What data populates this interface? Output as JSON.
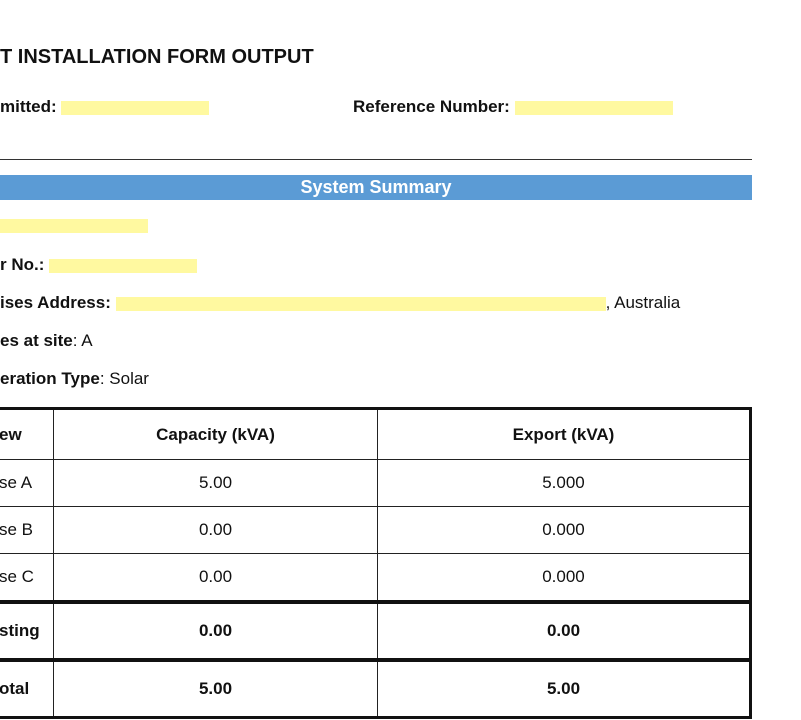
{
  "header": {
    "title": "T INSTALLATION FORM OUTPUT",
    "submitted_label": "mitted:",
    "reference_label": "Reference Number:"
  },
  "section": {
    "title": "System Summary"
  },
  "fields": [
    {
      "label": "",
      "value": ""
    },
    {
      "label": "r No.:",
      "value": ""
    },
    {
      "label": "ises Address:",
      "value": ", Australia"
    },
    {
      "label": "es at site",
      "value": ": A"
    },
    {
      "label": "eration Type",
      "value": ": Solar"
    }
  ],
  "colors": {
    "section_bar": "#5b9bd5",
    "redaction": "#fff9a0"
  },
  "table": {
    "headers": [
      "ew",
      "Capacity (kVA)",
      "Export (kVA)"
    ],
    "rows": [
      [
        "se A",
        "5.00",
        "5.000"
      ],
      [
        "se B",
        "0.00",
        "0.000"
      ],
      [
        "se C",
        "0.00",
        "0.000"
      ]
    ],
    "totals": [
      [
        "sting",
        "0.00",
        "0.00"
      ],
      [
        "otal",
        "5.00",
        "5.00"
      ]
    ]
  }
}
